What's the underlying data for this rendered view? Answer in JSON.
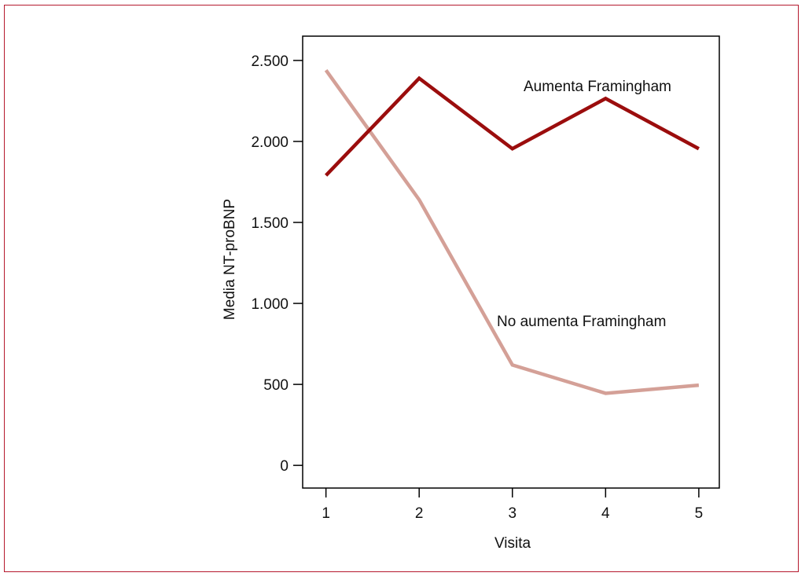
{
  "chart_data": {
    "type": "line",
    "xlabel": "Visita",
    "ylabel": "Media NT-proBNP",
    "x": [
      1,
      2,
      3,
      4,
      5
    ],
    "xlim": [
      0.75,
      5.22
    ],
    "ylim": [
      -140,
      2650
    ],
    "yticks": [
      0,
      500,
      1000,
      1500,
      2000,
      2500
    ],
    "ytick_labels": [
      "0",
      "500",
      "1.000",
      "1.500",
      "2.000",
      "2.500"
    ],
    "xtick_labels": [
      "1",
      "2",
      "3",
      "4",
      "5"
    ],
    "grid": false,
    "legend": "inline labels",
    "series": [
      {
        "name": "Aumenta Framingham",
        "color": "#9b0d0d",
        "values": [
          1790,
          2390,
          1955,
          2265,
          1955
        ]
      },
      {
        "name": "No aumenta Framingham",
        "color": "#d4a097",
        "values": [
          2440,
          1640,
          620,
          445,
          495
        ]
      }
    ]
  },
  "colors": {
    "frame": "#b5192d",
    "axis": "#000000"
  }
}
